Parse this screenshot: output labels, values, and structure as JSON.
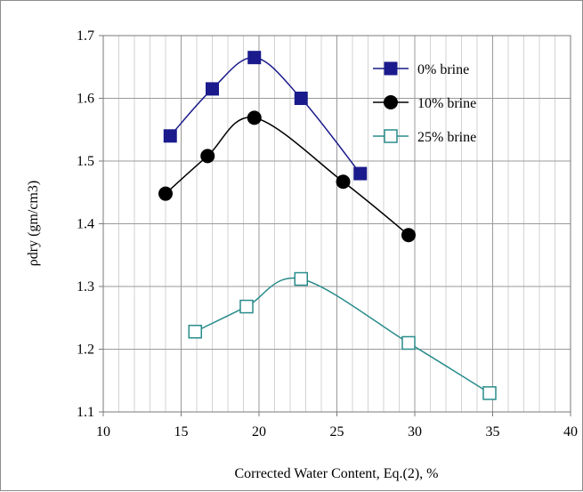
{
  "chart_data": {
    "type": "line",
    "xlabel": "Corrected Water Content, Eq.(2), %",
    "ylabel": "ρdry (gm/cm3)",
    "xlim": [
      10,
      40
    ],
    "ylim": [
      1.1,
      1.7
    ],
    "x_ticks": [
      "10",
      "15",
      "20",
      "25",
      "30",
      "35",
      "40"
    ],
    "y_ticks": [
      "1.1",
      "1.2",
      "1.3",
      "1.4",
      "1.5",
      "1.6",
      "1.7"
    ],
    "grid": true,
    "legend_position": "top-right",
    "series": [
      {
        "name": "0% brine",
        "color": "#1a1a8c",
        "marker": "filled-square",
        "x": [
          14.3,
          17.0,
          19.7,
          22.7,
          26.5
        ],
        "y": [
          1.54,
          1.615,
          1.665,
          1.6,
          1.48
        ]
      },
      {
        "name": "10% brine",
        "color": "#000000",
        "marker": "filled-circle",
        "x": [
          14.0,
          16.7,
          19.7,
          25.4,
          29.6
        ],
        "y": [
          1.448,
          1.508,
          1.569,
          1.467,
          1.382
        ]
      },
      {
        "name": "25% brine",
        "color": "#2a8c8c",
        "marker": "hollow-square",
        "x": [
          15.9,
          19.2,
          22.7,
          29.6,
          34.8
        ],
        "y": [
          1.228,
          1.268,
          1.312,
          1.21,
          1.13
        ]
      }
    ]
  }
}
